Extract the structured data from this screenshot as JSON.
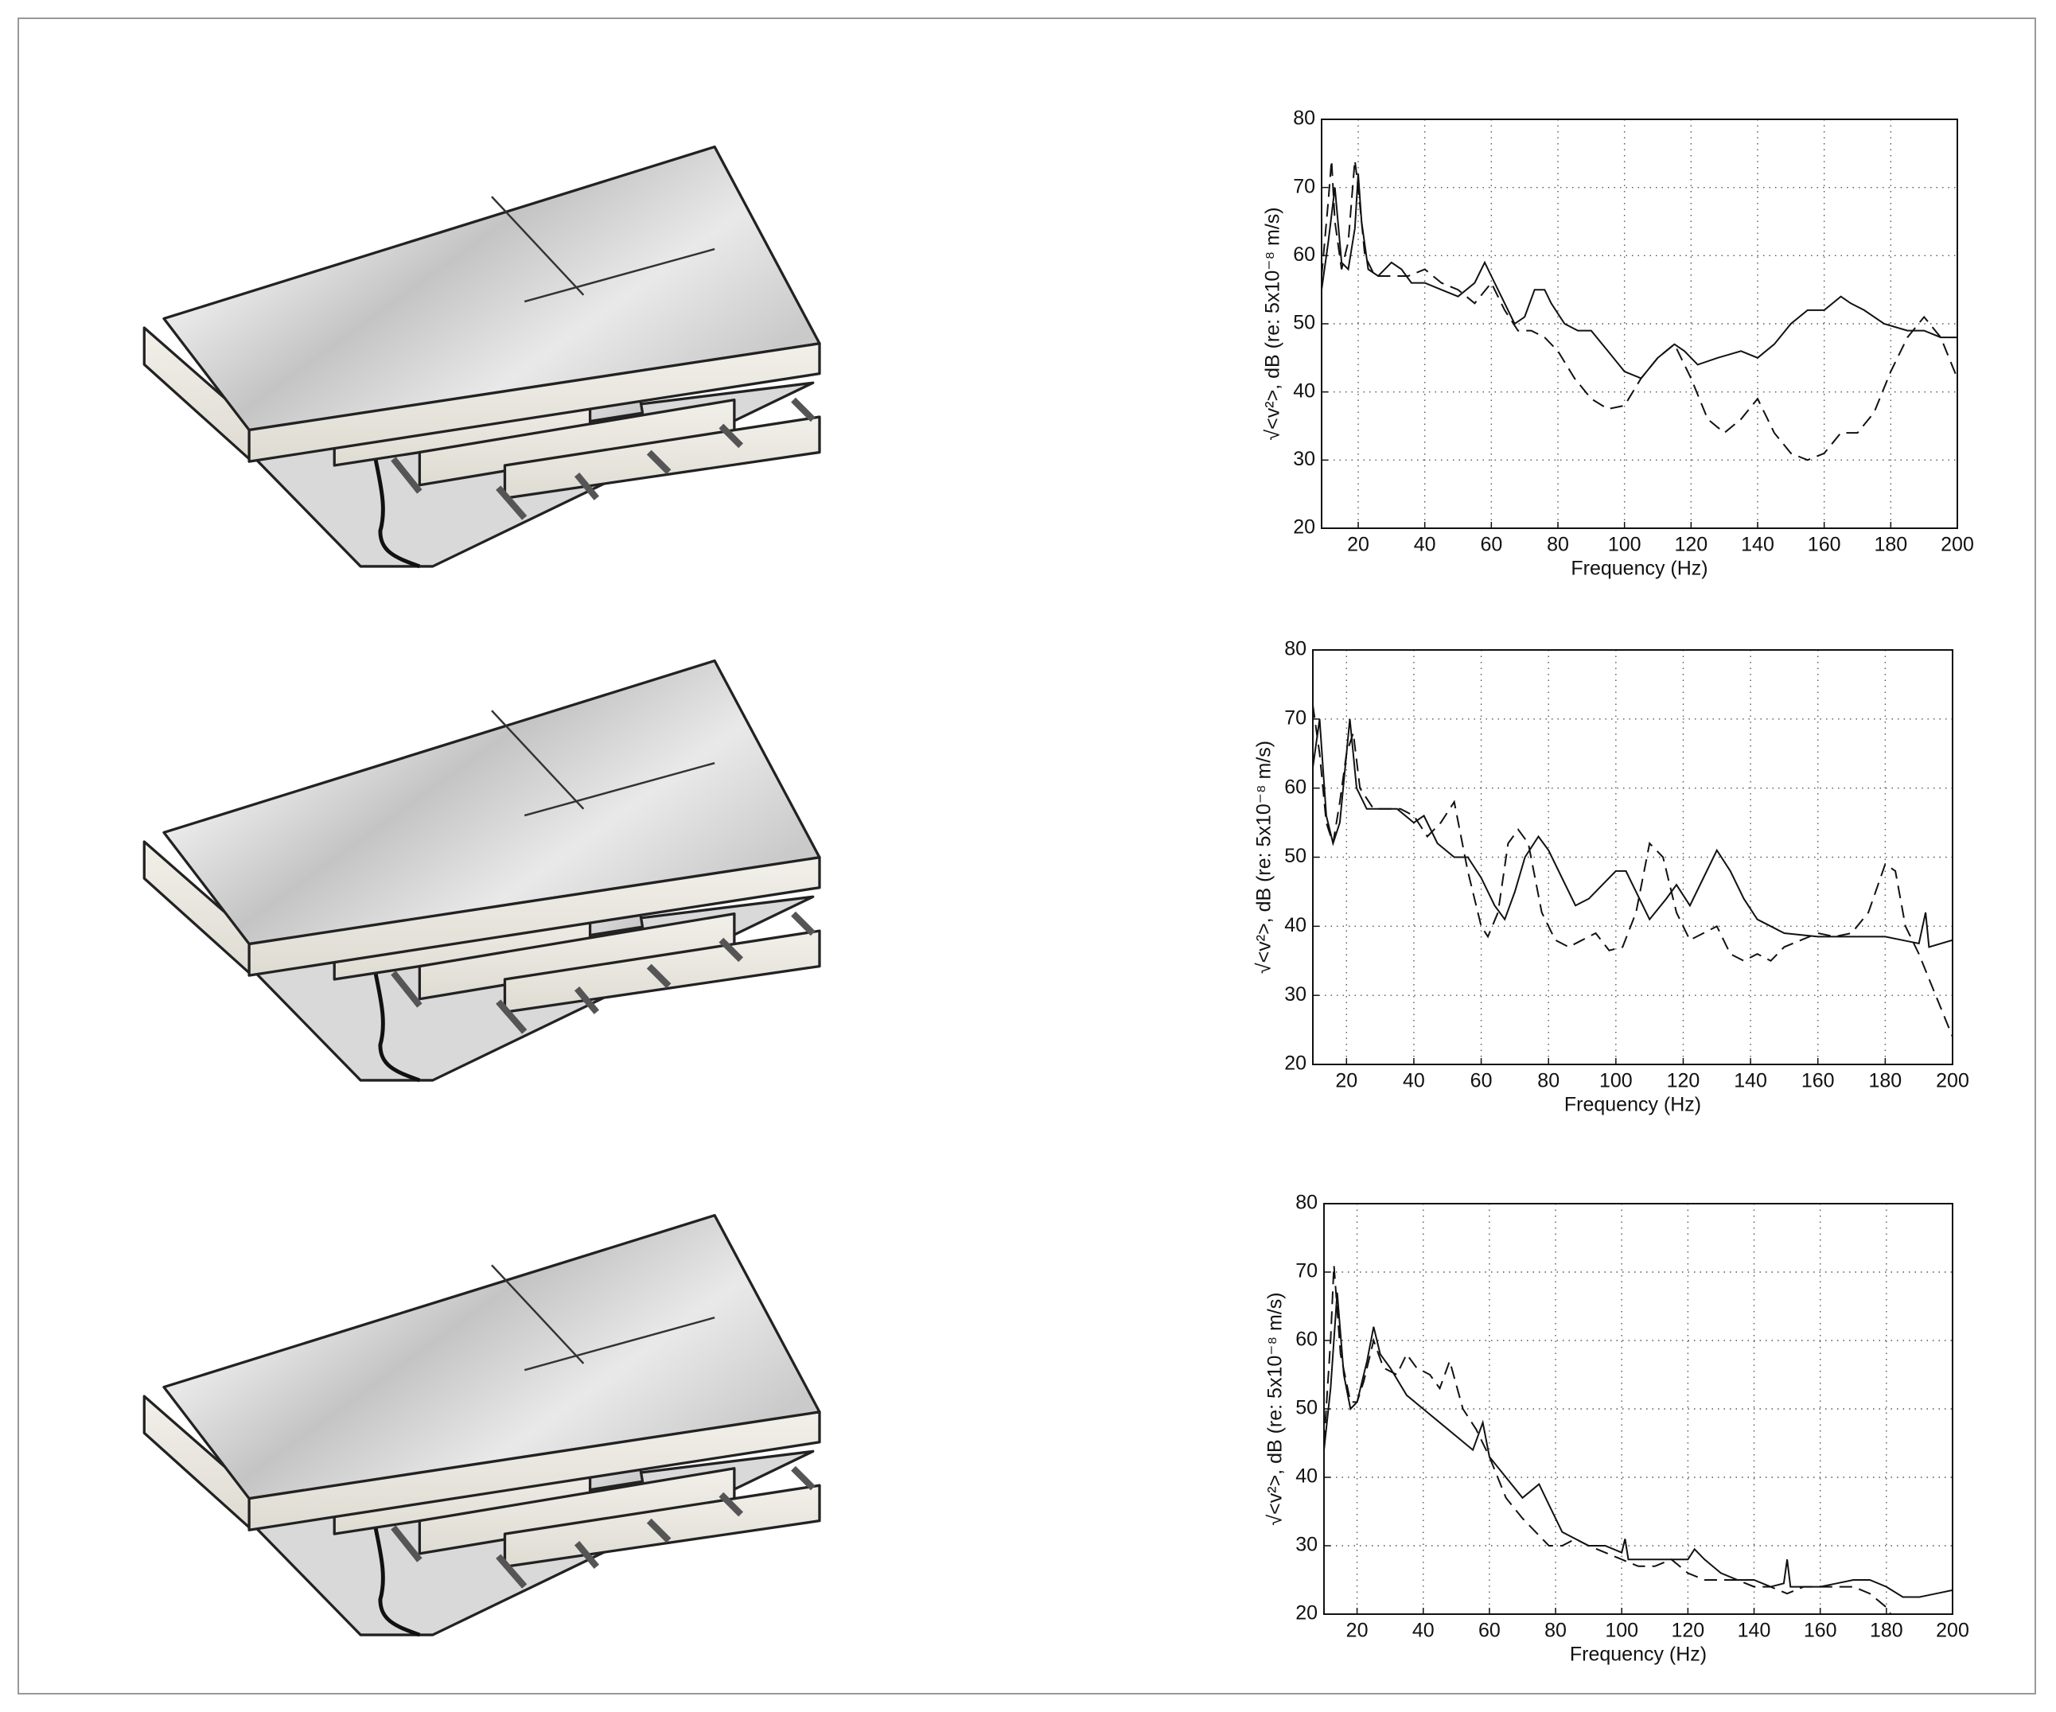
{
  "chart_data": [
    {
      "type": "line",
      "xlabel": "Frequency (Hz)",
      "ylabel": "√<v²>, dB (re: 5x10⁻⁸ m/s)",
      "xlim": [
        9,
        200
      ],
      "ylim": [
        20,
        80
      ],
      "xticks": [
        20,
        40,
        60,
        80,
        100,
        120,
        140,
        160,
        180,
        200
      ],
      "yticks": [
        20,
        30,
        40,
        50,
        60,
        70,
        80
      ],
      "grid": true,
      "series": [
        {
          "color": "#111111",
          "linestyle": "solid",
          "x": [
            9,
            11,
            13,
            15,
            17,
            19,
            20,
            21,
            23,
            26,
            30,
            33,
            36,
            40,
            45,
            50,
            55,
            58,
            60,
            63,
            67,
            70,
            73,
            76,
            78,
            82,
            86,
            90,
            95,
            100,
            105,
            110,
            115,
            118,
            122,
            128,
            135,
            140,
            145,
            150,
            155,
            160,
            165,
            168,
            172,
            178,
            185,
            190,
            195,
            200
          ],
          "values": [
            55,
            62,
            70,
            59,
            58,
            64,
            72,
            65,
            58,
            57,
            59,
            58,
            56,
            56,
            55,
            54,
            56,
            59,
            57,
            54,
            50,
            51,
            55,
            55,
            53,
            50,
            49,
            49,
            46,
            43,
            42,
            45,
            47,
            46,
            44,
            45,
            46,
            45,
            47,
            50,
            52,
            52,
            54,
            53,
            52,
            50,
            49,
            49,
            48,
            48
          ]
        },
        {
          "color": "#111111",
          "linestyle": "dashed",
          "x": [
            9,
            11,
            12,
            13,
            15,
            17,
            19,
            20,
            22,
            25,
            30,
            35,
            40,
            45,
            50,
            55,
            60,
            64,
            68,
            72,
            76,
            80,
            85,
            90,
            95,
            100,
            105,
            110,
            115,
            120,
            125,
            130,
            135,
            140,
            145,
            150,
            155,
            160,
            165,
            170,
            175,
            180,
            185,
            190,
            195,
            200
          ],
          "values": [
            57,
            68,
            74,
            65,
            58,
            62,
            74,
            70,
            60,
            57,
            57,
            57,
            58,
            56,
            55,
            53,
            56,
            52,
            49,
            49,
            48,
            46,
            42,
            39,
            37.5,
            38,
            42,
            45,
            47,
            42,
            36,
            34,
            36,
            39,
            34,
            31,
            30,
            31,
            34,
            34,
            37,
            43,
            48,
            51,
            48,
            42
          ]
        }
      ]
    },
    {
      "type": "line",
      "xlabel": "Frequency (Hz)",
      "ylabel": "√<v²>, dB (re: 5x10⁻⁸ m/s)",
      "xlim": [
        10,
        200
      ],
      "ylim": [
        20,
        80
      ],
      "xticks": [
        20,
        40,
        60,
        80,
        100,
        120,
        140,
        160,
        180,
        200
      ],
      "yticks": [
        20,
        30,
        40,
        50,
        60,
        70,
        80
      ],
      "grid": true,
      "series": [
        {
          "color": "#111111",
          "linestyle": "solid",
          "x": [
            10,
            12,
            14,
            16,
            18,
            21,
            23,
            26,
            30,
            35,
            40,
            43,
            47,
            52,
            56,
            60,
            64,
            67,
            70,
            73,
            77,
            80,
            84,
            88,
            92,
            96,
            100,
            103,
            106,
            110,
            115,
            118,
            122,
            126,
            130,
            134,
            138,
            142,
            146,
            150,
            160,
            170,
            180,
            185,
            190,
            192,
            193,
            200
          ],
          "values": [
            63,
            70,
            56,
            52,
            55,
            70,
            60,
            57,
            57,
            57,
            55,
            56,
            52,
            50,
            50,
            47,
            43,
            41,
            45,
            50,
            53,
            51,
            47,
            43,
            44,
            46,
            48,
            48,
            45,
            41,
            44,
            46,
            43,
            47,
            51,
            48,
            44,
            41,
            40,
            39,
            38.5,
            38.5,
            38.5,
            38,
            37.5,
            42,
            37,
            38
          ]
        },
        {
          "color": "#111111",
          "linestyle": "dashed",
          "x": [
            10,
            12,
            14,
            16,
            18,
            20,
            22,
            24,
            28,
            32,
            36,
            40,
            44,
            48,
            52,
            56,
            60,
            62,
            65,
            68,
            71,
            74,
            78,
            82,
            86,
            90,
            94,
            98,
            102,
            106,
            110,
            114,
            118,
            122,
            126,
            130,
            134,
            138,
            142,
            146,
            150,
            155,
            160,
            165,
            170,
            175,
            180,
            183,
            186,
            190,
            195,
            200
          ],
          "values": [
            72,
            65,
            55,
            52,
            58,
            65,
            68,
            60,
            57,
            57,
            57,
            56,
            53,
            55,
            58,
            48,
            40,
            38.5,
            42,
            52,
            54,
            52,
            42,
            38,
            37,
            38,
            39,
            36.5,
            37,
            42,
            52,
            50,
            42,
            38,
            39,
            40,
            36,
            35,
            36,
            35,
            37,
            38,
            39,
            38.5,
            39,
            42,
            49,
            48,
            40,
            36,
            30,
            24
          ]
        }
      ]
    },
    {
      "type": "line",
      "xlabel": "Frequency (Hz)",
      "ylabel": "√<v²>, dB (re: 5x10⁻⁸ m/s)",
      "xlim": [
        10,
        200
      ],
      "ylim": [
        20,
        80
      ],
      "xticks": [
        20,
        40,
        60,
        80,
        100,
        120,
        140,
        160,
        180,
        200
      ],
      "yticks": [
        20,
        30,
        40,
        50,
        60,
        70,
        80
      ],
      "grid": true,
      "series": [
        {
          "color": "#111111",
          "linestyle": "solid",
          "x": [
            10,
            12,
            14,
            16,
            18,
            20,
            23,
            25,
            27,
            30,
            35,
            40,
            45,
            50,
            55,
            58,
            60,
            65,
            70,
            75,
            78,
            82,
            86,
            90,
            95,
            100,
            101,
            102,
            110,
            115,
            120,
            122,
            125,
            130,
            135,
            140,
            145,
            149,
            150,
            151,
            155,
            160,
            165,
            170,
            175,
            180,
            185,
            190,
            195,
            200
          ],
          "values": [
            44,
            53,
            67,
            55,
            50,
            51,
            57,
            62,
            58,
            56,
            52,
            50,
            48,
            46,
            44,
            48,
            43,
            40,
            37,
            39,
            36,
            32,
            31,
            30,
            30,
            29,
            31,
            28,
            28,
            28,
            28,
            29.5,
            28,
            26,
            25,
            25,
            24,
            24.5,
            28,
            24,
            24,
            24,
            24.5,
            25,
            25,
            24,
            22.5,
            22.5,
            23,
            23.5
          ]
        },
        {
          "color": "#111111",
          "linestyle": "dashed",
          "x": [
            10,
            12,
            13,
            15,
            18,
            20,
            22,
            25,
            28,
            32,
            35,
            38,
            42,
            45,
            48,
            52,
            56,
            60,
            65,
            70,
            74,
            78,
            82,
            86,
            90,
            95,
            100,
            105,
            110,
            115,
            120,
            125,
            130,
            135,
            140,
            145,
            150,
            155,
            160,
            165,
            170,
            175,
            180,
            184
          ],
          "values": [
            45,
            60,
            71,
            58,
            51,
            51,
            54,
            60,
            56,
            55,
            58,
            56,
            55,
            53,
            57,
            50,
            47,
            43,
            37,
            34,
            32,
            30,
            30,
            31,
            30,
            29,
            28,
            27,
            27,
            28,
            26,
            25,
            25,
            25,
            24,
            24,
            23,
            24,
            24,
            24,
            24,
            23,
            21,
            18
          ]
        }
      ]
    }
  ]
}
